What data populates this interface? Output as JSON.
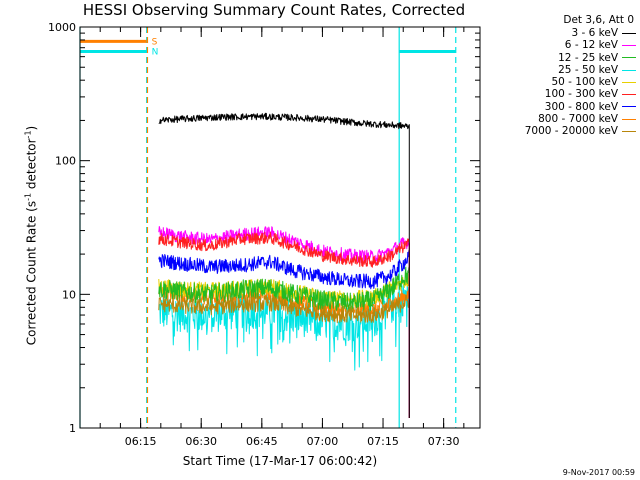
{
  "chart_data": {
    "type": "line",
    "title": "HESSI Observing Summary Count Rates, Corrected",
    "xlabel": "Start Time (17-Mar-17 06:00:42)",
    "ylabel_prefix": "Corrected Count Rate (s",
    "ylabel_sup1": "-1",
    "ylabel_mid": " detector",
    "ylabel_sup2": "-1",
    "ylabel_suffix": ")",
    "yscale": "log",
    "ylim": [
      1,
      1000
    ],
    "xlim_minutes": [
      0,
      99
    ],
    "yticks": [
      1,
      10,
      100,
      1000
    ],
    "ytick_labels": [
      "1",
      "10",
      "100",
      "1000"
    ],
    "xticks_minutes": [
      15,
      30,
      45,
      60,
      75,
      90
    ],
    "xtick_labels": [
      "06:15",
      "06:30",
      "06:45",
      "07:00",
      "07:15",
      "07:30"
    ],
    "legend_title": "Det 3,6, Att 0",
    "series": [
      {
        "name": "3 - 6 keV",
        "color": "#000000",
        "points": [
          [
            19.5,
            200
          ],
          [
            25,
            205
          ],
          [
            35,
            212
          ],
          [
            45,
            214
          ],
          [
            53,
            210
          ],
          [
            60,
            204
          ],
          [
            70,
            190
          ],
          [
            80,
            182
          ],
          [
            81.5,
            180
          ]
        ]
      },
      {
        "name": "6 - 12 keV",
        "color": "#ff00ff",
        "points": [
          [
            19.5,
            29
          ],
          [
            25,
            27
          ],
          [
            32,
            25.5
          ],
          [
            40,
            28
          ],
          [
            47,
            29
          ],
          [
            53,
            25
          ],
          [
            60,
            21
          ],
          [
            67,
            19.5
          ],
          [
            73,
            19
          ],
          [
            77,
            21
          ],
          [
            80,
            24
          ],
          [
            81.5,
            25
          ]
        ]
      },
      {
        "name": "12 - 25 keV",
        "color": "#22bb22",
        "points": [
          [
            19.5,
            11
          ],
          [
            25,
            10.5
          ],
          [
            32,
            10
          ],
          [
            40,
            10.8
          ],
          [
            47,
            11.2
          ],
          [
            53,
            10
          ],
          [
            60,
            9
          ],
          [
            67,
            8.6
          ],
          [
            73,
            9
          ],
          [
            77,
            11
          ],
          [
            80,
            13.5
          ],
          [
            81.5,
            14
          ]
        ]
      },
      {
        "name": "25 - 50 keV",
        "color": "#00e5e5",
        "points": [
          [
            19.5,
            7.5
          ],
          [
            25,
            7.2
          ],
          [
            32,
            7
          ],
          [
            40,
            7.6
          ],
          [
            47,
            7.6
          ],
          [
            53,
            6.8
          ],
          [
            60,
            6.3
          ],
          [
            67,
            6.1
          ],
          [
            73,
            6.6
          ],
          [
            77,
            8.2
          ],
          [
            80,
            9.5
          ],
          [
            81.5,
            10
          ]
        ]
      },
      {
        "name": "50 - 100 keV",
        "color": "#e8d000",
        "points": [
          [
            19.5,
            11.5
          ],
          [
            25,
            11
          ],
          [
            32,
            10.7
          ],
          [
            40,
            11.2
          ],
          [
            47,
            11.5
          ],
          [
            53,
            10.5
          ],
          [
            60,
            9.5
          ],
          [
            67,
            9.2
          ],
          [
            73,
            9.6
          ],
          [
            77,
            11.3
          ],
          [
            80,
            12.5
          ],
          [
            81.5,
            13
          ]
        ]
      },
      {
        "name": "100 - 300 keV",
        "color": "#ff2020",
        "points": [
          [
            19.5,
            26
          ],
          [
            25,
            24.5
          ],
          [
            32,
            23
          ],
          [
            40,
            26
          ],
          [
            47,
            26.5
          ],
          [
            53,
            23
          ],
          [
            60,
            19.5
          ],
          [
            67,
            18
          ],
          [
            73,
            17.5
          ],
          [
            77,
            19.5
          ],
          [
            80,
            22.5
          ],
          [
            81.5,
            24
          ]
        ]
      },
      {
        "name": "300 - 800 keV",
        "color": "#0000ff",
        "points": [
          [
            19.5,
            18
          ],
          [
            25,
            17
          ],
          [
            32,
            16
          ],
          [
            40,
            16.5
          ],
          [
            47,
            17.5
          ],
          [
            53,
            15
          ],
          [
            60,
            13.5
          ],
          [
            67,
            12.5
          ],
          [
            73,
            12.5
          ],
          [
            77,
            14
          ],
          [
            80,
            17
          ],
          [
            81.5,
            19
          ]
        ]
      },
      {
        "name": "800 - 7000 keV",
        "color": "#ff8000",
        "points": [
          [
            19.5,
            10.5
          ],
          [
            25,
            10
          ],
          [
            32,
            9.5
          ],
          [
            40,
            9.8
          ],
          [
            47,
            10
          ],
          [
            53,
            9
          ],
          [
            60,
            8
          ],
          [
            67,
            7.6
          ],
          [
            73,
            7.7
          ],
          [
            77,
            8.5
          ],
          [
            80,
            9.5
          ],
          [
            81.5,
            10
          ]
        ]
      },
      {
        "name": "7000 - 20000 keV",
        "color": "#b8860b",
        "points": [
          [
            19.5,
            8.5
          ],
          [
            25,
            8.2
          ],
          [
            32,
            8
          ],
          [
            40,
            8.4
          ],
          [
            47,
            8.6
          ],
          [
            53,
            7.8
          ],
          [
            60,
            7.2
          ],
          [
            67,
            6.9
          ],
          [
            73,
            7
          ],
          [
            77,
            7.8
          ],
          [
            80,
            8.6
          ],
          [
            81.5,
            9
          ]
        ]
      }
    ],
    "status_lines": [
      {
        "label": "S",
        "color": "#ff8000",
        "y": 780,
        "x_range": [
          0,
          16.5
        ]
      },
      {
        "label": "N",
        "color": "#00e5e5",
        "y": 655,
        "x_range": [
          0,
          16.5
        ]
      },
      {
        "label": "",
        "color": "#00e5e5",
        "y": 655,
        "x_range": [
          79,
          93
        ]
      }
    ],
    "vertical_markers": [
      {
        "color": "#00e5e5",
        "style": "solid",
        "x": 0
      },
      {
        "color": "#00e5e5",
        "style": "dashed",
        "x": 16.5
      },
      {
        "color": "#ff8000",
        "style": "dashed",
        "x": 16.7
      },
      {
        "color": "#00e5e5",
        "style": "solid",
        "x": 79
      },
      {
        "color": "#00e5e5",
        "style": "dashed",
        "x": 93
      }
    ]
  },
  "footer": {
    "date_stamp": "9-Nov-2017 00:59"
  }
}
